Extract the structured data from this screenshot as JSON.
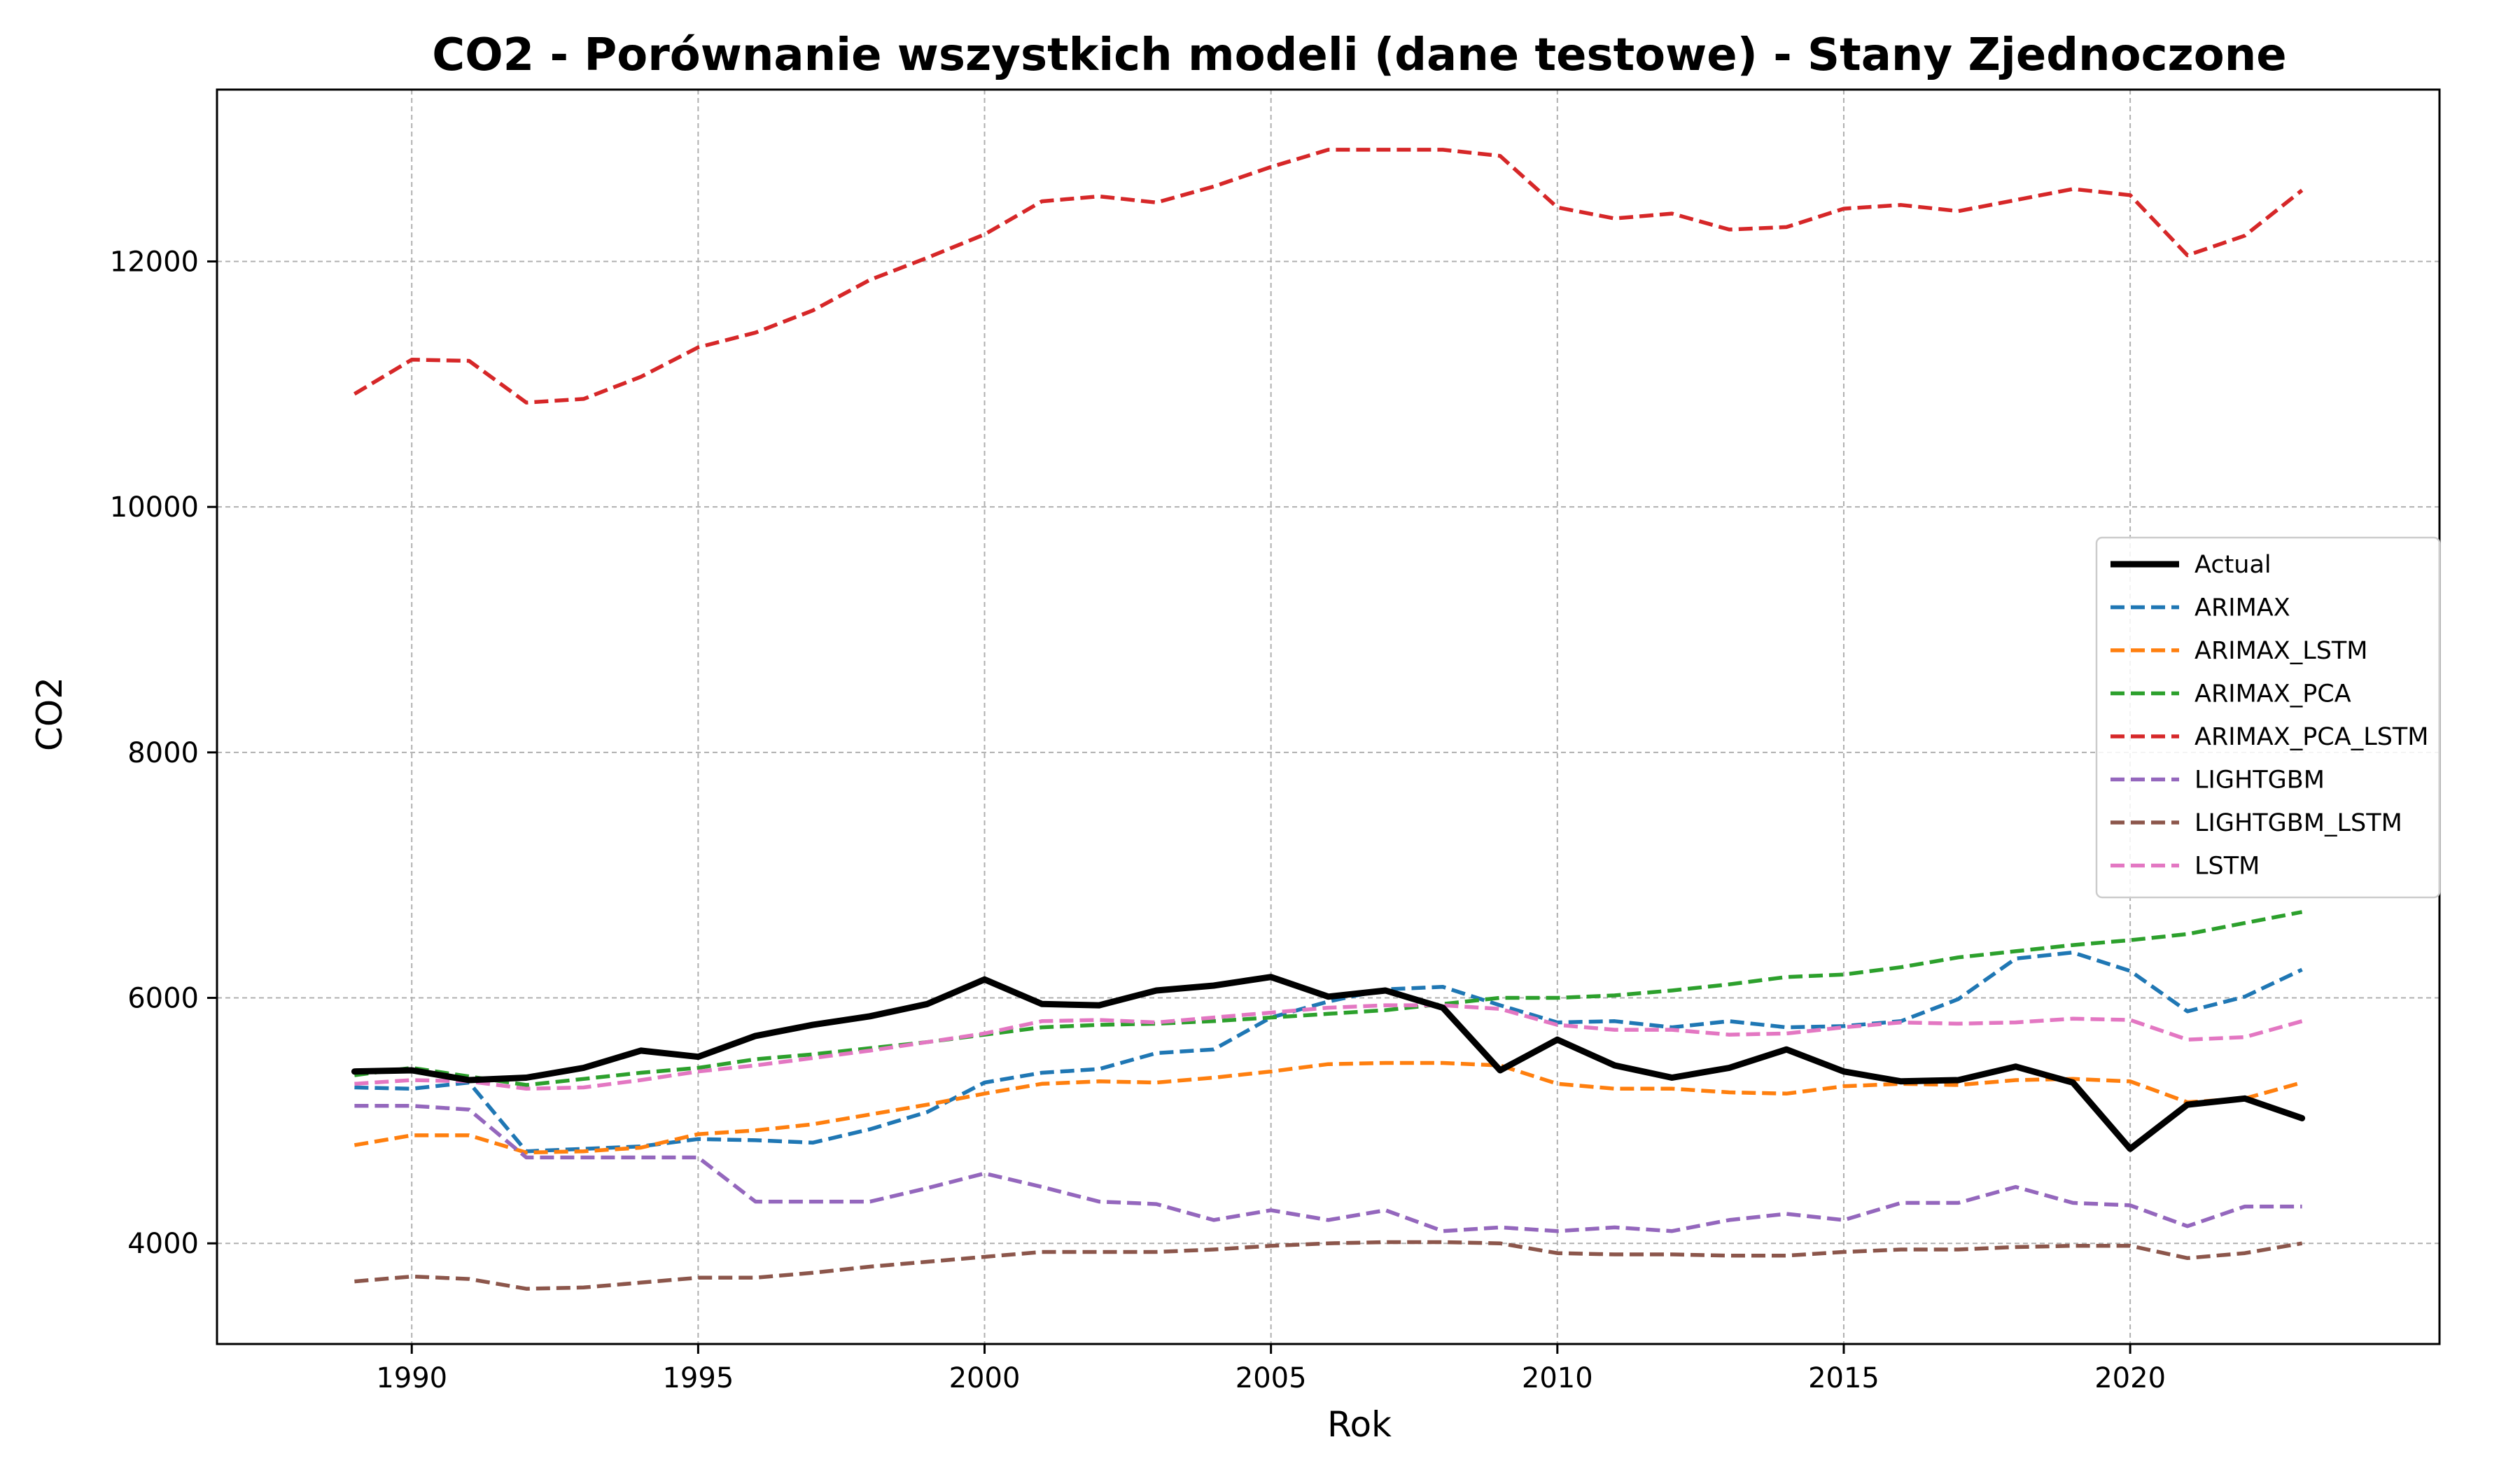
{
  "chart_data": {
    "type": "line",
    "title": "CO2 - Porównanie wszystkich modeli (dane testowe) - Stany Zjednoczone",
    "xlabel": "Rok",
    "ylabel": "CO2",
    "xlim": [
      1986.6,
      2025.4
    ],
    "ylim": [
      3180,
      13400
    ],
    "xticks": [
      1990,
      1995,
      2000,
      2005,
      2010,
      2015,
      2020
    ],
    "yticks": [
      4000,
      6000,
      8000,
      10000,
      12000
    ],
    "grid": true,
    "legend_position": "center-right",
    "x": [
      1989,
      1990,
      1991,
      1992,
      1993,
      1994,
      1995,
      1996,
      1997,
      1998,
      1999,
      2000,
      2001,
      2002,
      2003,
      2004,
      2005,
      2006,
      2007,
      2008,
      2009,
      2010,
      2011,
      2012,
      2013,
      2014,
      2015,
      2016,
      2017,
      2018,
      2019,
      2020,
      2021,
      2022,
      2023
    ],
    "series": [
      {
        "name": "Actual",
        "color": "#000000",
        "style": "solid",
        "values": [
          5400,
          5410,
          5330,
          5350,
          5430,
          5570,
          5520,
          5690,
          5780,
          5850,
          5950,
          6150,
          5950,
          5940,
          6060,
          6100,
          6170,
          6010,
          6060,
          5920,
          5410,
          5660,
          5450,
          5350,
          5430,
          5580,
          5400,
          5320,
          5330,
          5440,
          5310,
          4770,
          5130,
          5180,
          5020
        ]
      },
      {
        "name": "ARIMAX",
        "color": "#1f77b4",
        "style": "dashed",
        "values": [
          5270,
          5260,
          5310,
          4750,
          4770,
          4790,
          4850,
          4840,
          4820,
          4930,
          5070,
          5310,
          5390,
          5420,
          5550,
          5580,
          5840,
          5970,
          6070,
          6090,
          5940,
          5800,
          5810,
          5760,
          5810,
          5760,
          5770,
          5810,
          5990,
          6320,
          6370,
          6220,
          5890,
          6010,
          6230
        ]
      },
      {
        "name": "ARIMAX_LSTM",
        "color": "#ff7f0e",
        "style": "dashed",
        "values": [
          4800,
          4880,
          4880,
          4740,
          4750,
          4780,
          4890,
          4920,
          4970,
          5050,
          5130,
          5220,
          5300,
          5320,
          5310,
          5350,
          5400,
          5460,
          5470,
          5470,
          5450,
          5300,
          5260,
          5260,
          5230,
          5220,
          5280,
          5300,
          5290,
          5330,
          5340,
          5320,
          5150,
          5180,
          5310
        ]
      },
      {
        "name": "ARIMAX_PCA",
        "color": "#2ca02c",
        "style": "dashed",
        "values": [
          5370,
          5430,
          5360,
          5290,
          5340,
          5390,
          5430,
          5500,
          5540,
          5590,
          5640,
          5700,
          5760,
          5780,
          5790,
          5810,
          5840,
          5870,
          5900,
          5950,
          6000,
          6000,
          6020,
          6060,
          6110,
          6170,
          6190,
          6250,
          6330,
          6380,
          6430,
          6470,
          6520,
          6610,
          6700
        ]
      },
      {
        "name": "ARIMAX_PCA_LSTM",
        "color": "#d62728",
        "style": "dashed",
        "values": [
          10920,
          11200,
          11190,
          10850,
          10880,
          11060,
          11300,
          11420,
          11600,
          11850,
          12030,
          12220,
          12490,
          12530,
          12480,
          12610,
          12770,
          12910,
          12910,
          12910,
          12860,
          12440,
          12350,
          12390,
          12260,
          12280,
          12430,
          12460,
          12410,
          12500,
          12590,
          12540,
          12050,
          12210,
          12580
        ]
      },
      {
        "name": "LIGHTGBM",
        "color": "#9467bd",
        "style": "dashed",
        "values": [
          5120,
          5120,
          5090,
          4700,
          4700,
          4700,
          4700,
          4340,
          4340,
          4340,
          4450,
          4570,
          4460,
          4340,
          4320,
          4190,
          4270,
          4190,
          4270,
          4100,
          4130,
          4100,
          4130,
          4100,
          4190,
          4240,
          4190,
          4330,
          4330,
          4460,
          4330,
          4310,
          4140,
          4300,
          4300
        ]
      },
      {
        "name": "LIGHTGBM_LSTM",
        "color": "#8c564b",
        "style": "dashed",
        "values": [
          3690,
          3730,
          3710,
          3630,
          3640,
          3680,
          3720,
          3720,
          3760,
          3810,
          3850,
          3890,
          3930,
          3930,
          3930,
          3950,
          3980,
          4000,
          4010,
          4010,
          4000,
          3920,
          3910,
          3910,
          3900,
          3900,
          3930,
          3950,
          3950,
          3970,
          3980,
          3980,
          3880,
          3920,
          4000
        ]
      },
      {
        "name": "LSTM",
        "color": "#e377c2",
        "style": "dashed",
        "values": [
          5300,
          5330,
          5320,
          5260,
          5270,
          5330,
          5400,
          5450,
          5510,
          5570,
          5640,
          5710,
          5810,
          5820,
          5800,
          5840,
          5880,
          5920,
          5940,
          5940,
          5910,
          5780,
          5740,
          5740,
          5700,
          5710,
          5760,
          5800,
          5790,
          5800,
          5830,
          5820,
          5660,
          5680,
          5810
        ]
      }
    ]
  }
}
